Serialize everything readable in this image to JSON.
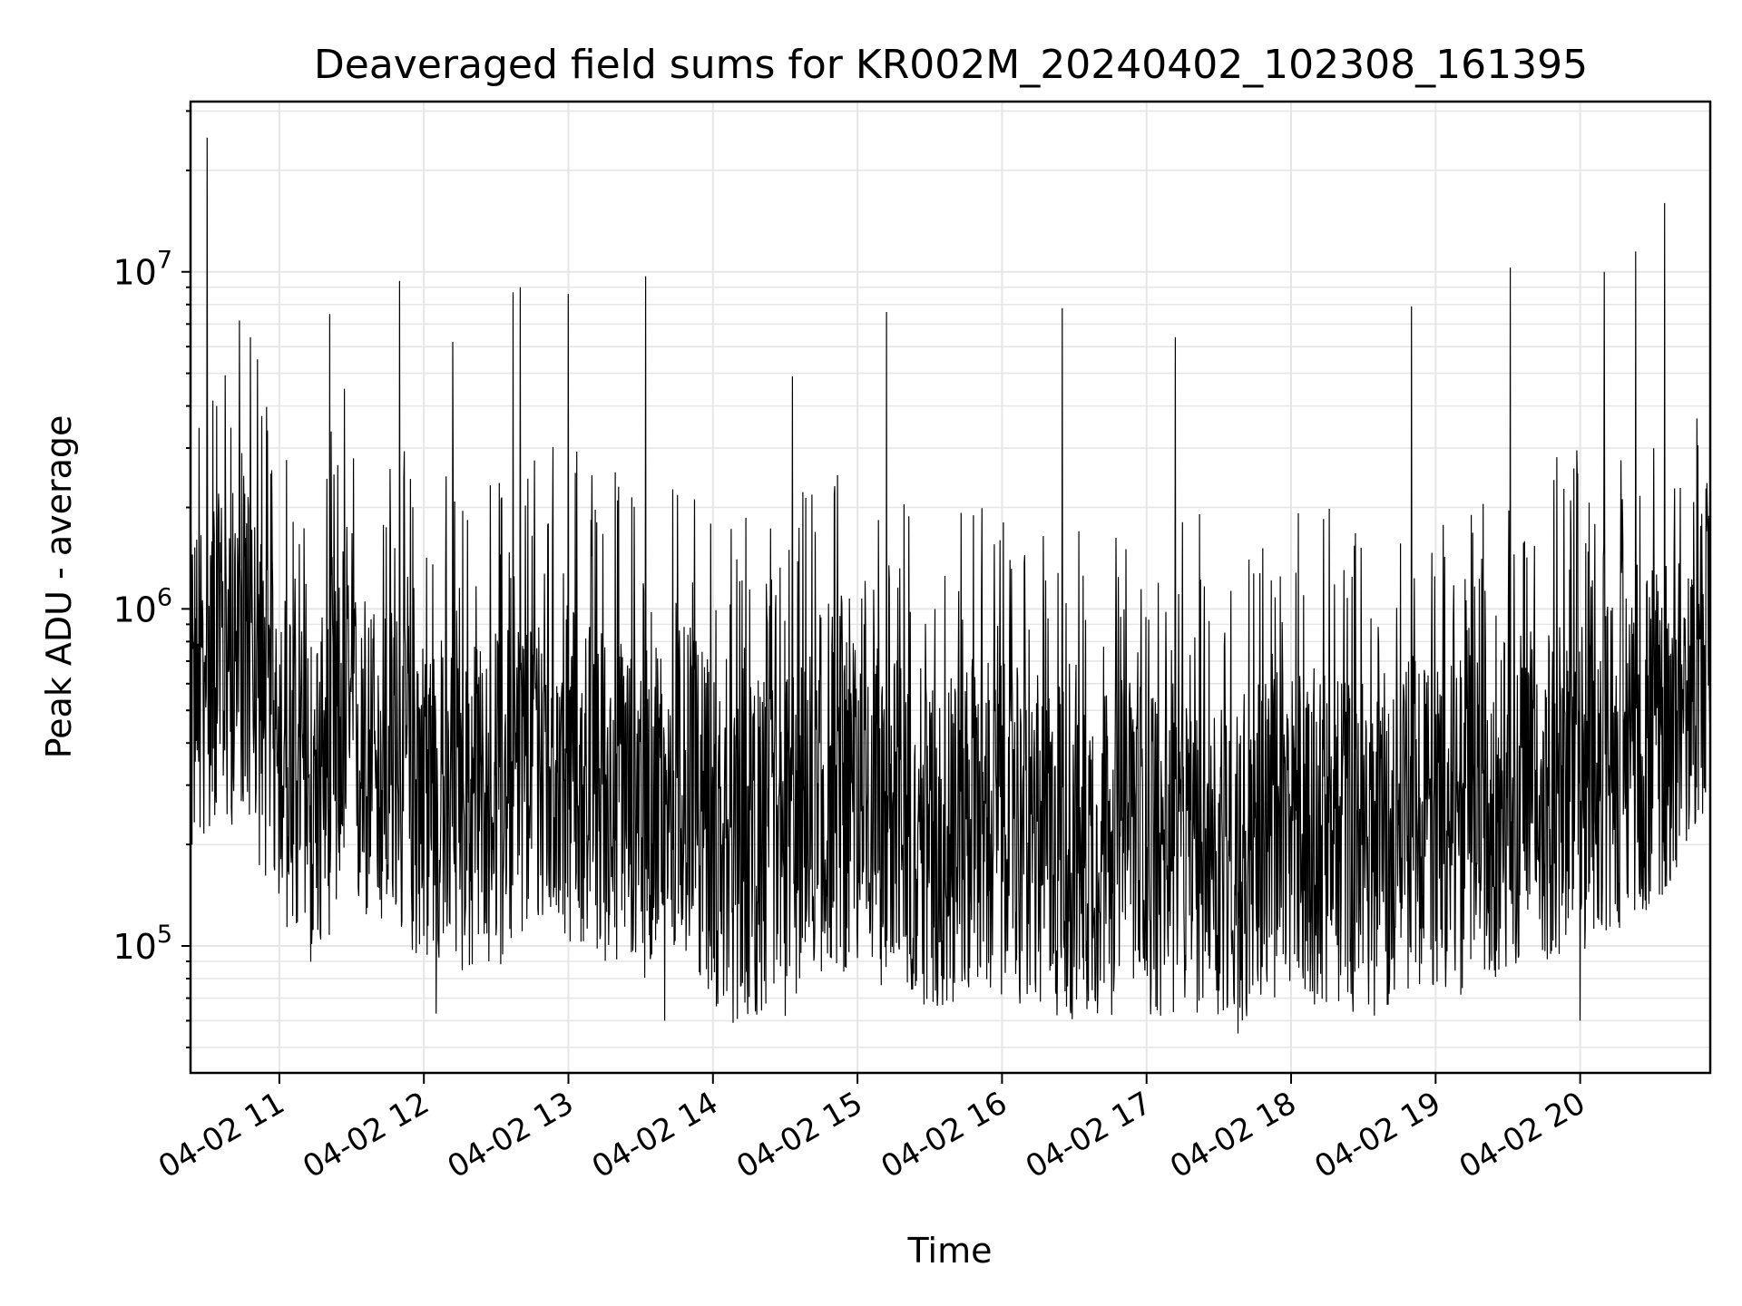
{
  "chart_data": {
    "type": "line",
    "title": "Deaveraged field sums for KR002M_20240402_102308_161395",
    "xlabel": "Time",
    "ylabel": "Peak ADU - average",
    "x_scale": "time",
    "y_scale": "log",
    "xlim": [
      "2024-04-02 10:23:08",
      "2024-04-02 20:54:00"
    ],
    "ylim": [
      42000,
      32000000
    ],
    "x_tick_labels": [
      "04-02 11",
      "04-02 12",
      "04-02 13",
      "04-02 14",
      "04-02 15",
      "04-02 16",
      "04-02 17",
      "04-02 18",
      "04-02 19",
      "04-02 20"
    ],
    "y_tick_labels": [
      {
        "base": "10",
        "exp": "5"
      },
      {
        "base": "10",
        "exp": "6"
      },
      {
        "base": "10",
        "exp": "7"
      }
    ],
    "grid": true,
    "line_color": "#000000",
    "series": [
      {
        "x": [
          "2024-04-02 10:23:08",
          "2024-04-02 10:28:00",
          "2024-04-02 10:33:00",
          "2024-04-02 10:38:00",
          "2024-04-02 10:45:00",
          "2024-04-02 10:52:00",
          "2024-04-02 10:58:00",
          "2024-04-02 11:05:00",
          "2024-04-02 11:15:00",
          "2024-04-02 11:25:00",
          "2024-04-02 11:35:00",
          "2024-04-02 11:50:00",
          "2024-04-02 12:05:00",
          "2024-04-02 12:20:00",
          "2024-04-02 12:35:00",
          "2024-04-02 12:50:00",
          "2024-04-02 13:05:00",
          "2024-04-02 13:20:00",
          "2024-04-02 13:35:00",
          "2024-04-02 13:50:00",
          "2024-04-02 14:05:00",
          "2024-04-02 14:20:00",
          "2024-04-02 14:35:00",
          "2024-04-02 14:50:00",
          "2024-04-02 15:05:00",
          "2024-04-02 15:20:00",
          "2024-04-02 15:35:00",
          "2024-04-02 15:50:00",
          "2024-04-02 16:05:00",
          "2024-04-02 16:20:00",
          "2024-04-02 16:35:00",
          "2024-04-02 16:50:00",
          "2024-04-02 17:05:00",
          "2024-04-02 17:20:00",
          "2024-04-02 17:35:00",
          "2024-04-02 17:50:00",
          "2024-04-02 18:05:00",
          "2024-04-02 18:20:00",
          "2024-04-02 18:35:00",
          "2024-04-02 18:50:00",
          "2024-04-02 19:05:00",
          "2024-04-02 19:20:00",
          "2024-04-02 19:35:00",
          "2024-04-02 19:50:00",
          "2024-04-02 20:05:00",
          "2024-04-02 20:20:00",
          "2024-04-02 20:35:00",
          "2024-04-02 20:45:00",
          "2024-04-02 20:54:00"
        ],
        "values": [
          600000,
          700000,
          800000,
          750000,
          900000,
          600000,
          500000,
          350000,
          300000,
          450000,
          400000,
          350000,
          300000,
          280000,
          320000,
          400000,
          350000,
          300000,
          280000,
          320000,
          200000,
          220000,
          250000,
          300000,
          280000,
          250000,
          220000,
          260000,
          240000,
          220000,
          200000,
          230000,
          210000,
          220000,
          200000,
          230000,
          240000,
          230000,
          220000,
          260000,
          240000,
          280000,
          300000,
          320000,
          350000,
          400000,
          500000,
          700000,
          900000
        ]
      }
    ],
    "peaks": [
      {
        "x": "2024-04-02 10:30:00",
        "value": 25000000
      },
      {
        "x": "2024-04-02 10:34:00",
        "value": 4000000
      },
      {
        "x": "2024-04-02 10:48:00",
        "value": 6400000
      },
      {
        "x": "2024-04-02 10:51:00",
        "value": 5500000
      },
      {
        "x": "2024-04-02 11:21:00",
        "value": 7500000
      },
      {
        "x": "2024-04-02 11:27:00",
        "value": 4500000
      },
      {
        "x": "2024-04-02 11:50:00",
        "value": 9400000
      },
      {
        "x": "2024-04-02 12:12:00",
        "value": 6200000
      },
      {
        "x": "2024-04-02 12:37:00",
        "value": 8700000
      },
      {
        "x": "2024-04-02 12:40:00",
        "value": 9000000
      },
      {
        "x": "2024-04-02 13:00:00",
        "value": 8600000
      },
      {
        "x": "2024-04-02 13:32:00",
        "value": 9700000
      },
      {
        "x": "2024-04-02 14:33:00",
        "value": 4900000
      },
      {
        "x": "2024-04-02 15:12:00",
        "value": 7600000
      },
      {
        "x": "2024-04-02 16:25:00",
        "value": 7800000
      },
      {
        "x": "2024-04-02 17:12:00",
        "value": 6400000
      },
      {
        "x": "2024-04-02 18:50:00",
        "value": 7900000
      },
      {
        "x": "2024-04-02 19:31:00",
        "value": 10300000
      },
      {
        "x": "2024-04-02 20:10:00",
        "value": 10000000
      },
      {
        "x": "2024-04-02 20:23:00",
        "value": 11500000
      },
      {
        "x": "2024-04-02 20:35:00",
        "value": 16000000
      }
    ],
    "troughs": [
      {
        "x": "2024-04-02 12:05:00",
        "value": 63000
      },
      {
        "x": "2024-04-02 13:40:00",
        "value": 60000
      },
      {
        "x": "2024-04-02 14:30:00",
        "value": 62000
      },
      {
        "x": "2024-04-02 17:38:00",
        "value": 55000
      },
      {
        "x": "2024-04-02 20:00:00",
        "value": 60000
      }
    ]
  }
}
